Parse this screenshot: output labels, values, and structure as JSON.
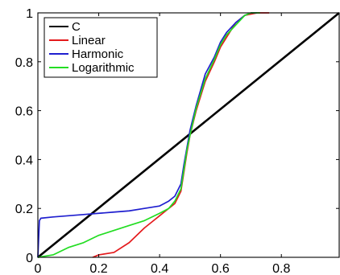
{
  "chart_data": {
    "type": "line",
    "title": "",
    "xlabel": "",
    "ylabel": "",
    "xlim": [
      0,
      0.99
    ],
    "ylim": [
      0,
      1
    ],
    "xticks": [
      0,
      0.2,
      0.4,
      0.6,
      0.8
    ],
    "yticks": [
      0,
      0.2,
      0.4,
      0.6,
      0.8,
      1
    ],
    "xtick_labels": [
      "0",
      "0.2",
      "0.4",
      "0.6",
      "0.8"
    ],
    "ytick_labels": [
      "0",
      "0.2",
      "0.4",
      "0.6",
      "0.8",
      "1"
    ],
    "grid": false,
    "legend_position": "top-left",
    "series": [
      {
        "name": "C",
        "color": "#000000",
        "x": [
          0,
          0.99
        ],
        "y": [
          0,
          1
        ]
      },
      {
        "name": "Linear",
        "color": "#e41a1c",
        "x": [
          0.18,
          0.2,
          0.25,
          0.3,
          0.35,
          0.38,
          0.4,
          0.42,
          0.44,
          0.45,
          0.47,
          0.48,
          0.49,
          0.5,
          0.52,
          0.55,
          0.58,
          0.6,
          0.63,
          0.65,
          0.68,
          0.72,
          0.76
        ],
        "y": [
          0,
          0.01,
          0.02,
          0.06,
          0.12,
          0.15,
          0.17,
          0.19,
          0.21,
          0.22,
          0.27,
          0.35,
          0.43,
          0.5,
          0.6,
          0.72,
          0.8,
          0.86,
          0.92,
          0.96,
          0.99,
          1.0,
          1.0
        ]
      },
      {
        "name": "Harmonic",
        "color": "#1f1fcf",
        "x": [
          0,
          0.005,
          0.01,
          0.05,
          0.1,
          0.15,
          0.2,
          0.25,
          0.3,
          0.35,
          0.4,
          0.43,
          0.45,
          0.47,
          0.48,
          0.49,
          0.5,
          0.52,
          0.55,
          0.58,
          0.6,
          0.62,
          0.65,
          0.68,
          0.7,
          0.72
        ],
        "y": [
          0,
          0.15,
          0.16,
          0.165,
          0.17,
          0.175,
          0.18,
          0.185,
          0.19,
          0.2,
          0.21,
          0.23,
          0.25,
          0.3,
          0.38,
          0.45,
          0.52,
          0.62,
          0.75,
          0.82,
          0.88,
          0.92,
          0.96,
          0.99,
          1.0,
          1.0
        ]
      },
      {
        "name": "Logarithmic",
        "color": "#22dd22",
        "x": [
          0,
          0.05,
          0.1,
          0.15,
          0.2,
          0.25,
          0.3,
          0.35,
          0.4,
          0.43,
          0.45,
          0.47,
          0.48,
          0.49,
          0.5,
          0.52,
          0.55,
          0.58,
          0.6,
          0.62,
          0.65,
          0.68,
          0.7,
          0.73
        ],
        "y": [
          0,
          0.01,
          0.04,
          0.06,
          0.09,
          0.11,
          0.13,
          0.15,
          0.18,
          0.2,
          0.23,
          0.28,
          0.36,
          0.44,
          0.5,
          0.61,
          0.73,
          0.81,
          0.87,
          0.91,
          0.95,
          0.99,
          1.0,
          1.0
        ]
      }
    ]
  }
}
